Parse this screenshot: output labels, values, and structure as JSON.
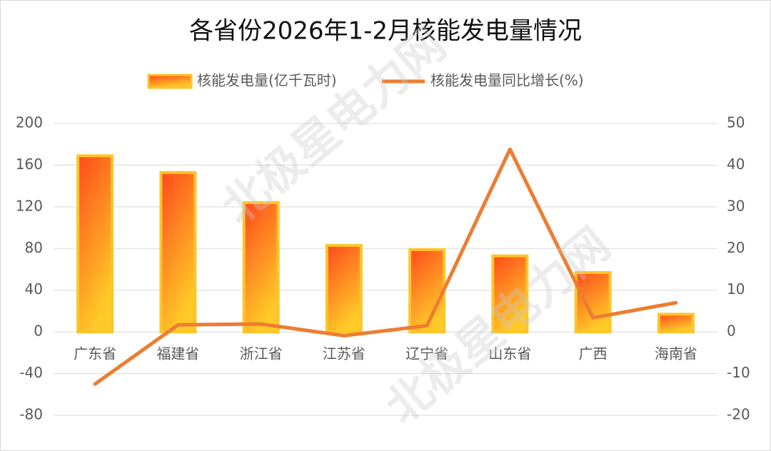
{
  "chart_data": {
    "type": "bar_line",
    "title": "各省份2026年1-2月核能发电量情况",
    "watermark": "北极星电力网",
    "categories": [
      "广东省",
      "福建省",
      "浙江省",
      "江苏省",
      "辽宁省",
      "山东省",
      "广西",
      "海南省"
    ],
    "series": [
      {
        "name": "核能发电量(亿千瓦时)",
        "type": "bar",
        "color": "#fcc52c",
        "values": [
          169,
          153,
          124,
          83,
          79,
          73,
          57,
          17
        ]
      },
      {
        "name": "核能发电量同比增长(%)",
        "type": "line",
        "axis": "y2",
        "color": "#ed7d31",
        "values": [
          -12.5,
          1.7,
          1.9,
          -0.9,
          1.5,
          43.8,
          3.4,
          7.0
        ]
      }
    ],
    "ylim": [
      -80,
      200
    ],
    "yticks": [
      -80,
      -40,
      0,
      40,
      80,
      120,
      160,
      200
    ],
    "y2lim": [
      -20,
      50
    ],
    "y2ticks": [
      -20,
      -10,
      0,
      10,
      20,
      30,
      40,
      50
    ],
    "grid": true,
    "legend": "top"
  }
}
